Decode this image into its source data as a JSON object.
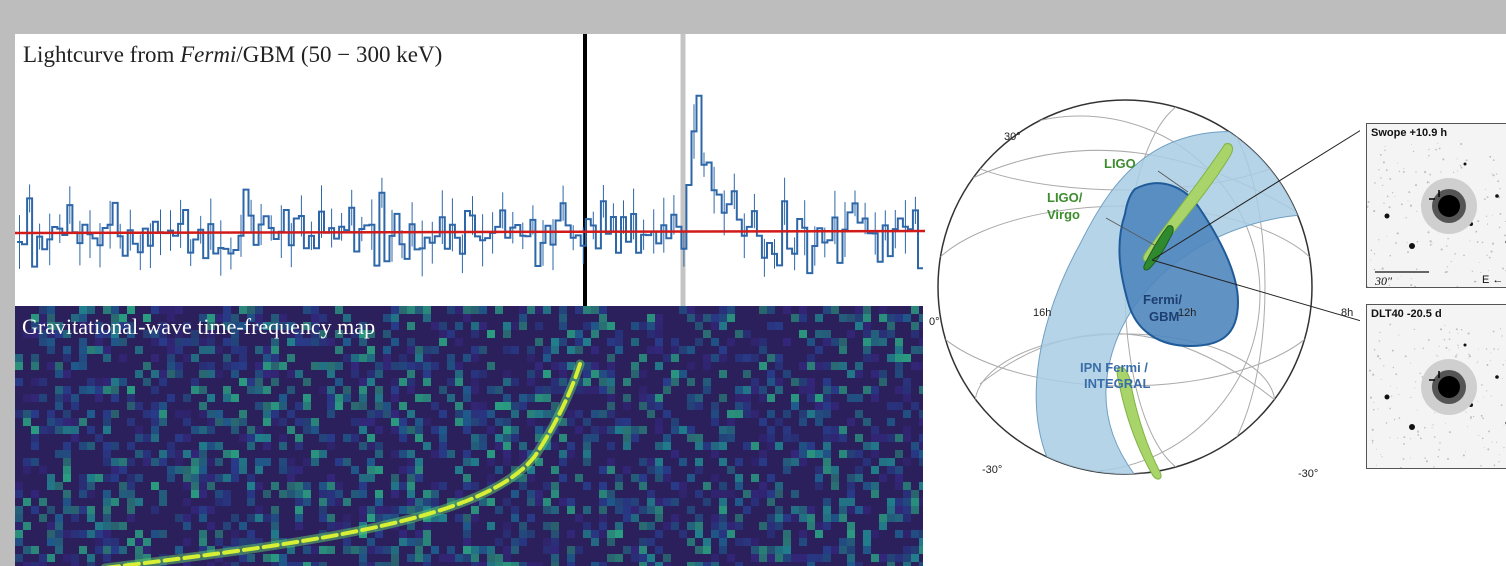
{
  "lightcurve": {
    "title_pre": "Lightcurve from ",
    "title_italic": "Fermi",
    "title_post": "/GBM (50 − 300 keV)",
    "colors": {
      "trace": "#2e67a8",
      "fit": "#d11a1a",
      "merger_line": "#000000",
      "grb_line": "#c4c4c4"
    }
  },
  "gw_map": {
    "title": "Gravitational-wave time-frequency map",
    "colors": {
      "background": "#2b1f5c",
      "chirp": "#d7f035"
    }
  },
  "skymap": {
    "labels": {
      "lat_top": "30°",
      "lat_equator": "0°",
      "lat_bottom_left": "-30°",
      "lat_bottom_right": "-30°",
      "ra_left": "16h",
      "ra_mid": "12h",
      "ra_right": "8h"
    },
    "regions": {
      "ligo": "LIGO",
      "ligo_virgo_line1": "LIGO/",
      "ligo_virgo_line2": "Virgo",
      "fermi_gbm_line1": "Fermi/",
      "fermi_gbm_line2": "GBM",
      "ipn_line1": "IPN Fermi /",
      "ipn_line2": "INTEGRAL"
    },
    "colors": {
      "ipn": "#a9cce4",
      "gbm": "#4f86be",
      "gbm_edge": "#1f5b98",
      "ligo": "#a9d46a",
      "ligo_virgo": "#2f8a2f",
      "green_text": "#3d8c2e",
      "blue_text": "#3a6ea8"
    }
  },
  "cutouts": {
    "swope": {
      "label": "Swope +10.9 h",
      "scale": "30″",
      "compass": "E ←"
    },
    "dlt40": {
      "label": "DLT40 -20.5 d"
    }
  }
}
